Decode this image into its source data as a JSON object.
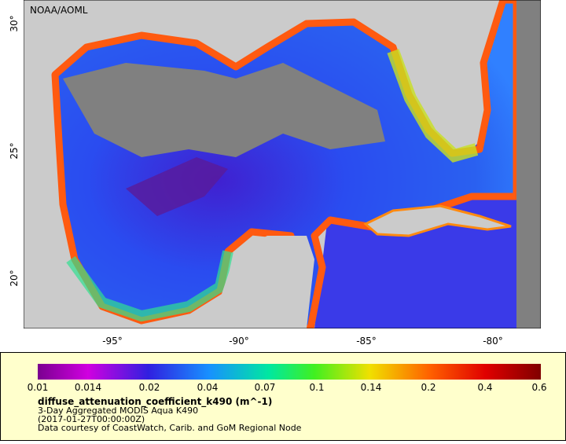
{
  "map": {
    "credit": "NOAA/AOML",
    "lat_ticks": [
      "20°",
      "25°",
      "30°"
    ],
    "lon_ticks": [
      "-95°",
      "-90°",
      "-85°",
      "-80°"
    ]
  },
  "colorbar": {
    "ticks": [
      "0.01",
      "0.014",
      "0.02",
      "0.04",
      "0.07",
      "0.1",
      "0.14",
      "0.2",
      "0.4",
      "0.6"
    ]
  },
  "caption": {
    "variable": "diffuse_attenuation_coefficient_k490 (m^-1)",
    "product": "3-Day Aggregated MODIS Aqua K490",
    "time": "(2017-01-27T00:00:00Z)",
    "source": "Data courtesy of CoastWatch, Carib. and GoM Regional Node"
  }
}
